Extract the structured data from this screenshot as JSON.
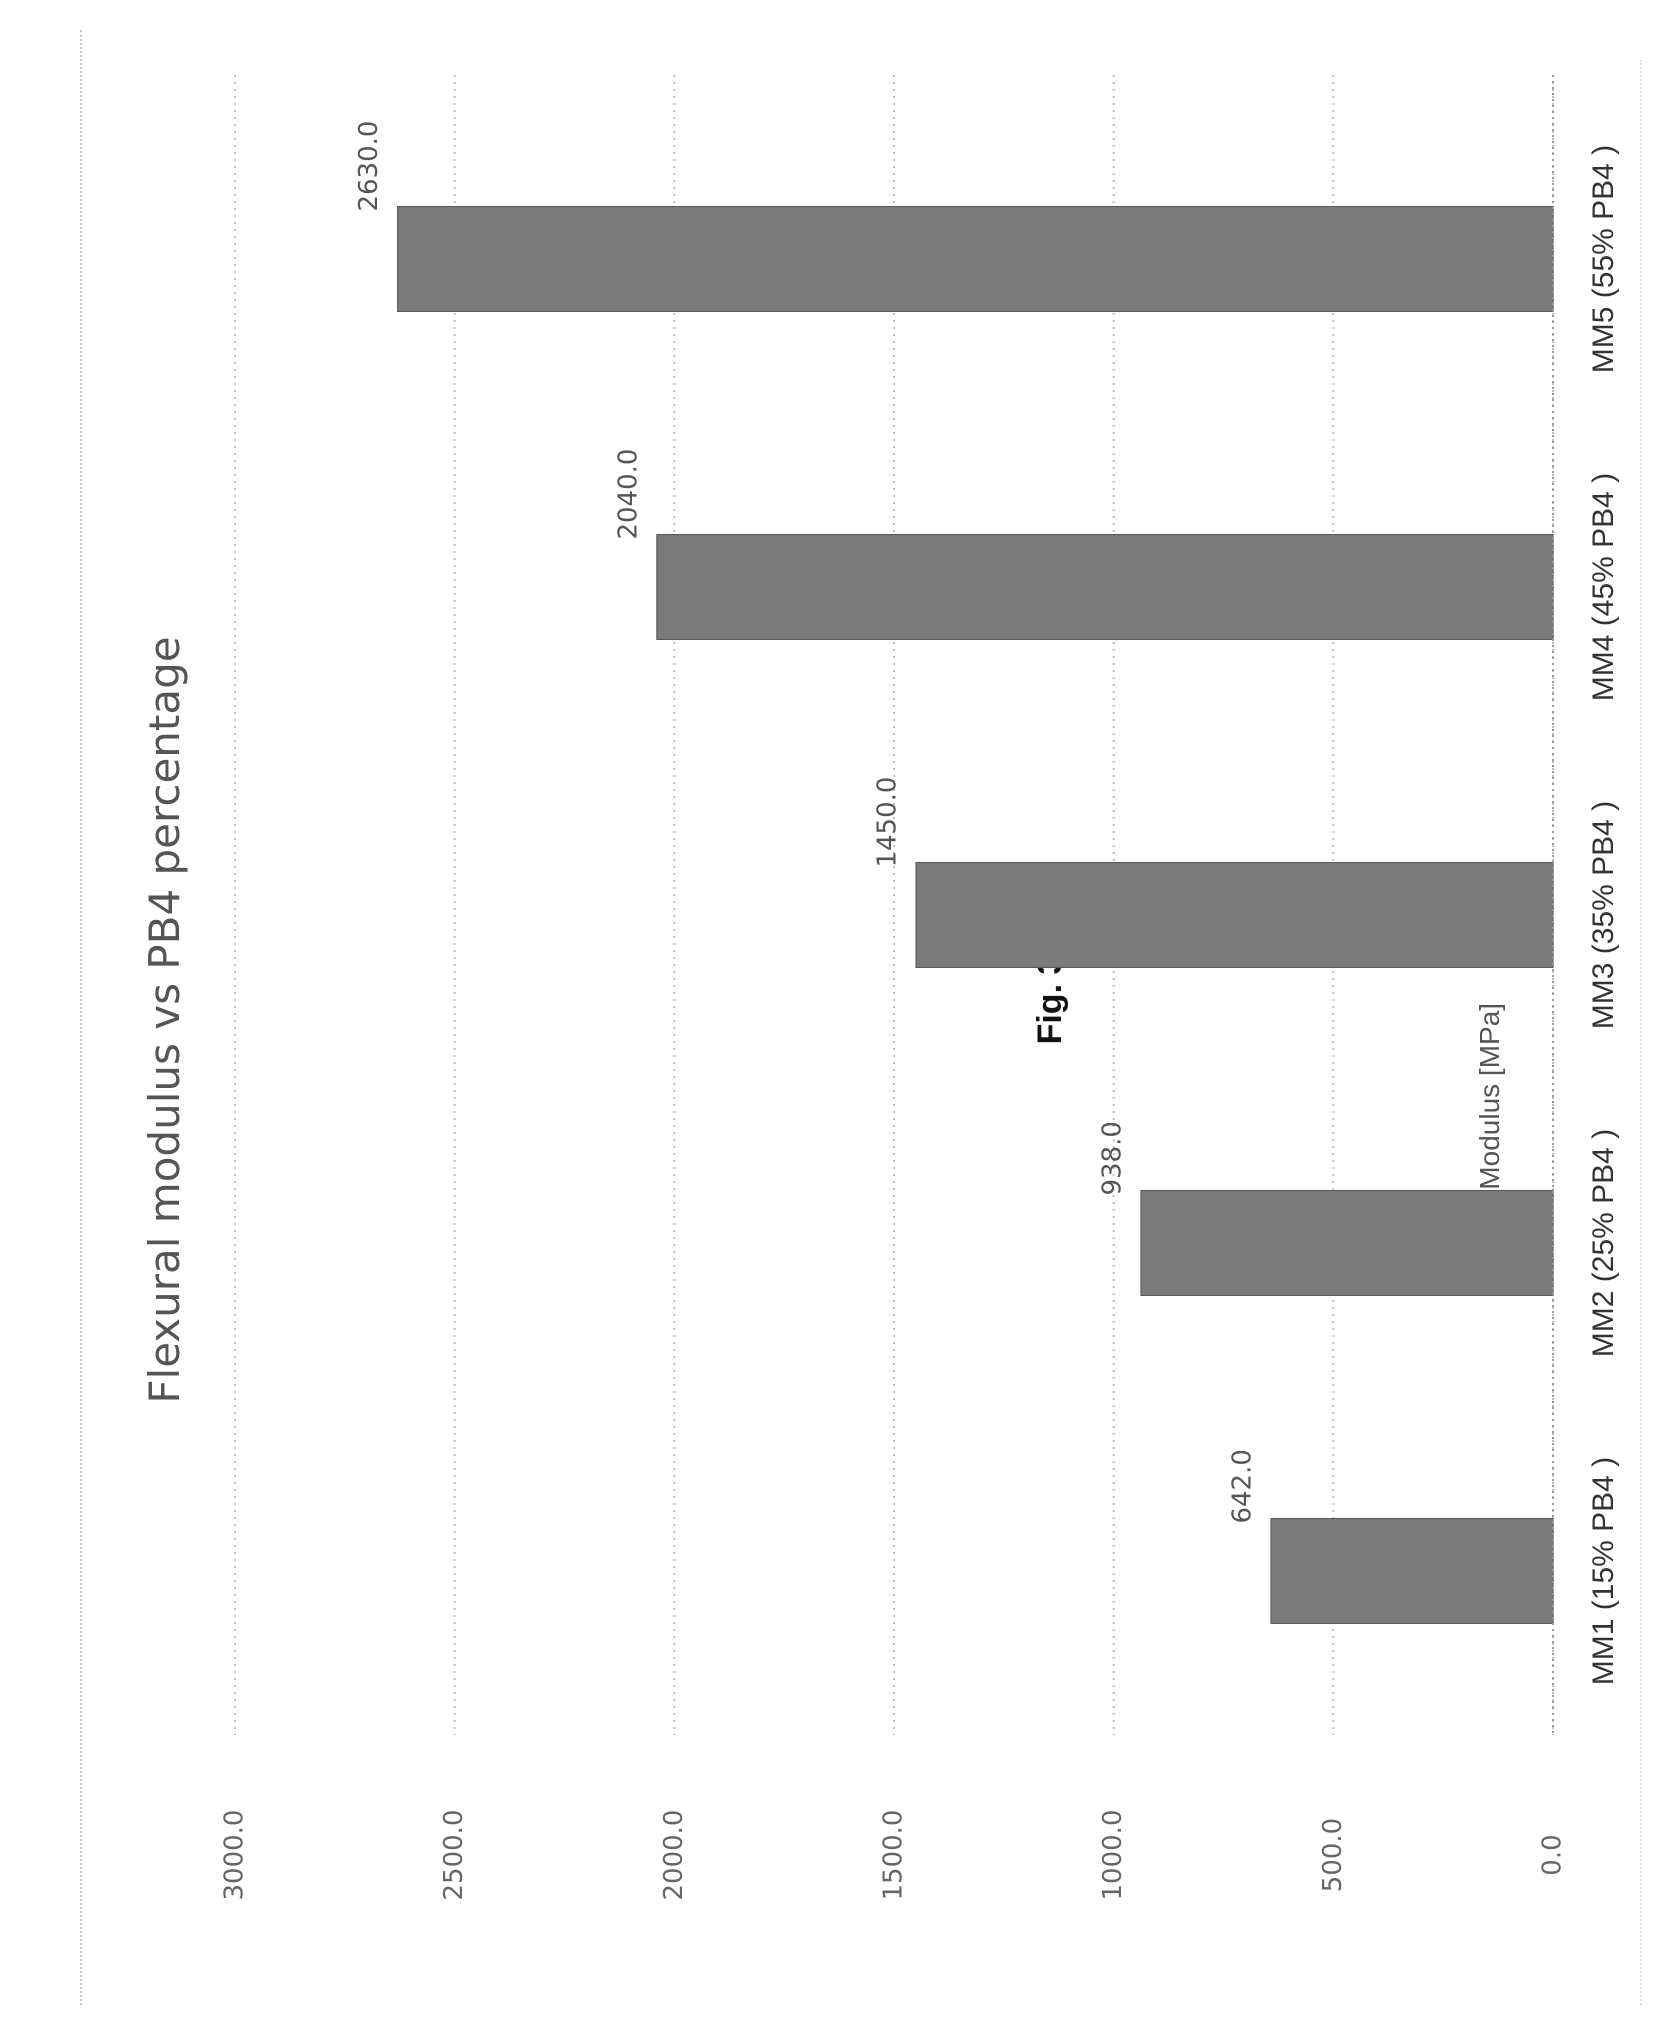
{
  "figure_label": "Fig. 3",
  "chart_data": {
    "type": "bar",
    "title": "Flexural modulus vs PB4 percentage",
    "xlabel": "",
    "ylabel": "Flexural Modulus [MPa]",
    "categories": [
      "MM1 (15% PB4 )",
      "MM2 (25% PB4 )",
      "MM3 (35% PB4 )",
      "MM4 (45% PB4 )",
      "MM5 (55% PB4 )"
    ],
    "values": [
      642.0,
      938.0,
      1450.0,
      2040.0,
      2630.0
    ],
    "data_labels": [
      "642.0",
      "938.0",
      "1450.0",
      "2040.0",
      "2630.0"
    ],
    "ylim": [
      0,
      3000
    ],
    "y_ticks": [
      "0.0",
      "500.0",
      "1000.0",
      "1500.0",
      "2000.0",
      "2500.0",
      "3000.0"
    ],
    "grid": true,
    "bar_color": "#7a7a7a",
    "orientation": "figure rotated 90 degrees counter-clockwise"
  }
}
